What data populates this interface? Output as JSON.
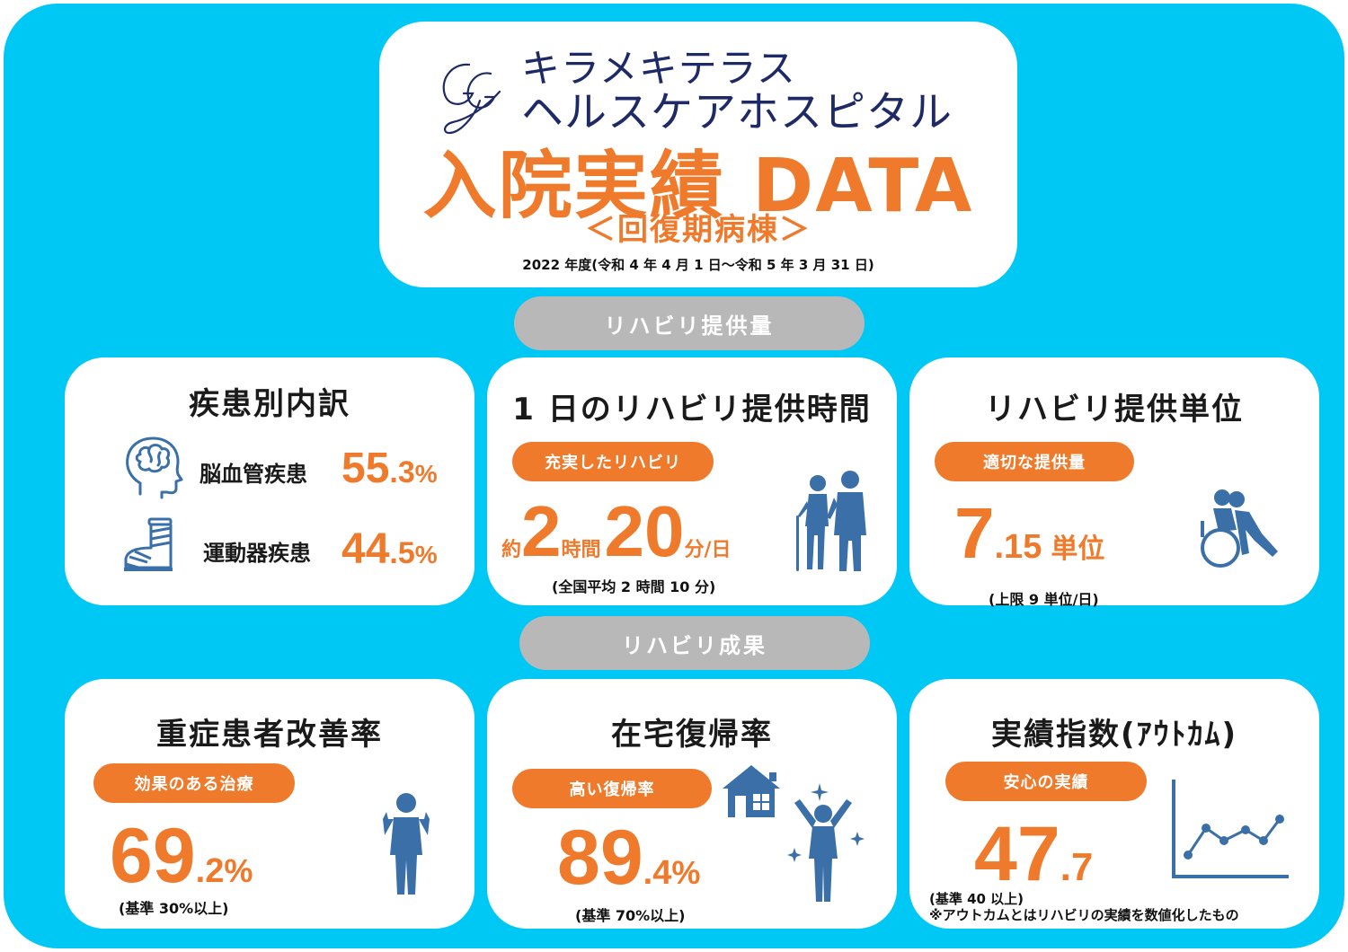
{
  "colors": {
    "background": "#00c8f5",
    "accent": "#f07a2b",
    "navy": "#1e2a66",
    "icon": "#3a6fa8",
    "pill": "#b8b8b8"
  },
  "header": {
    "logo_icon": "ggh-monogram-icon",
    "brand_line1": "キラメキテラス",
    "brand_line2": "ヘルスケアホスピタル",
    "title": "入院実績 DATA",
    "subtitle": "＜回復期病棟＞",
    "period": "2022 年度(令和 4 年 4 月 1 日～令和 5 年 3 月 31 日)"
  },
  "sections": {
    "rehab_amount": "リハビリ提供量",
    "rehab_results": "リハビリ成果"
  },
  "disease_breakdown": {
    "title": "疾患別内訳",
    "items": [
      {
        "icon": "brain-head-icon",
        "label": "脳血管疾患",
        "int": "55",
        "dec": ".3",
        "unit": "%"
      },
      {
        "icon": "leg-cast-icon",
        "label": "運動器疾患",
        "int": "44",
        "dec": ".5",
        "unit": "%"
      }
    ]
  },
  "daily_time": {
    "title": "1 日のリハビリ提供時間",
    "tag": "充実したリハビリ",
    "prefix": "約",
    "hours": "2",
    "hours_unit": "時間",
    "minutes": "20",
    "minutes_unit": "分/日",
    "note": "(全国平均 2 時間 10 分)",
    "icon": "elderly-couple-icon"
  },
  "units": {
    "title": "リハビリ提供単位",
    "tag": "適切な提供量",
    "int": "7",
    "dec": ".15",
    "unit": "単位",
    "note": "(上限 9 単位/日)",
    "icon": "wheelchair-assist-icon"
  },
  "improvement": {
    "title": "重症患者改善率",
    "tag": "効果のある治療",
    "int": "69",
    "dec": ".2",
    "unit": "%",
    "note": "(基準 30%以上)",
    "icon": "standing-person-icon"
  },
  "home_return": {
    "title": "在宅復帰率",
    "tag": "高い復帰率",
    "int": "89",
    "dec": ".4",
    "unit": "%",
    "note": "(基準 70%以上)",
    "icon": "house-celebrate-icon"
  },
  "outcome": {
    "title": "実績指数(ｱｳﾄｶﾑ)",
    "tag": "安心の実績",
    "int": "47",
    "dec": ".7",
    "note1": "(基準 40 以上)",
    "note2": "※アウトカムとはリハビリの実績を数値化したもの",
    "icon": "line-graph-icon"
  }
}
